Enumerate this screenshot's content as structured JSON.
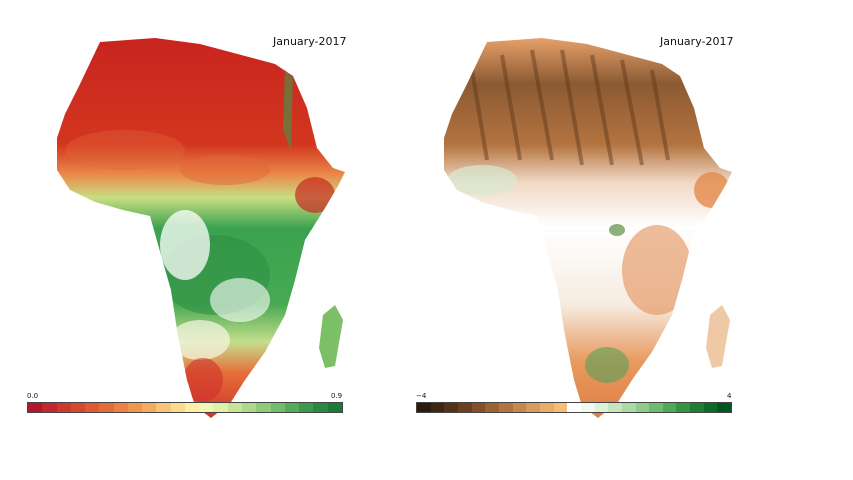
{
  "maps": [
    {
      "id": "ndvi",
      "date": "January-2017",
      "colorbar": {
        "min_label": "0.0",
        "max_label": "0.9",
        "colors": [
          "#b2182b",
          "#c1272d",
          "#cc3a2e",
          "#d6492f",
          "#de5b34",
          "#e46e3a",
          "#ea8243",
          "#ef974f",
          "#f4ad60",
          "#f8c576",
          "#fbdb8f",
          "#fdefa8",
          "#f3f6b2",
          "#dff0a8",
          "#c7e59a",
          "#acd98a",
          "#90cb7b",
          "#72bc6b",
          "#55ab5c",
          "#3c9a4d",
          "#288a41",
          "#1a7a37"
        ]
      }
    },
    {
      "id": "anomaly",
      "date": "January-2017",
      "colorbar": {
        "min_label": "−4",
        "max_label": "4",
        "colors": [
          "#2b1a0e",
          "#3f2514",
          "#55311a",
          "#6c3f21",
          "#84502b",
          "#9b6235",
          "#b17541",
          "#c5894e",
          "#d89c5c",
          "#e8ad69",
          "#f4bd78",
          "#ffffff",
          "#f2f8ee",
          "#dff0d8",
          "#c7e6bf",
          "#acd9a5",
          "#8ecb8b",
          "#6fbb71",
          "#50a85a",
          "#349446",
          "#1d7f35",
          "#0b6a27",
          "#005522"
        ]
      }
    }
  ]
}
